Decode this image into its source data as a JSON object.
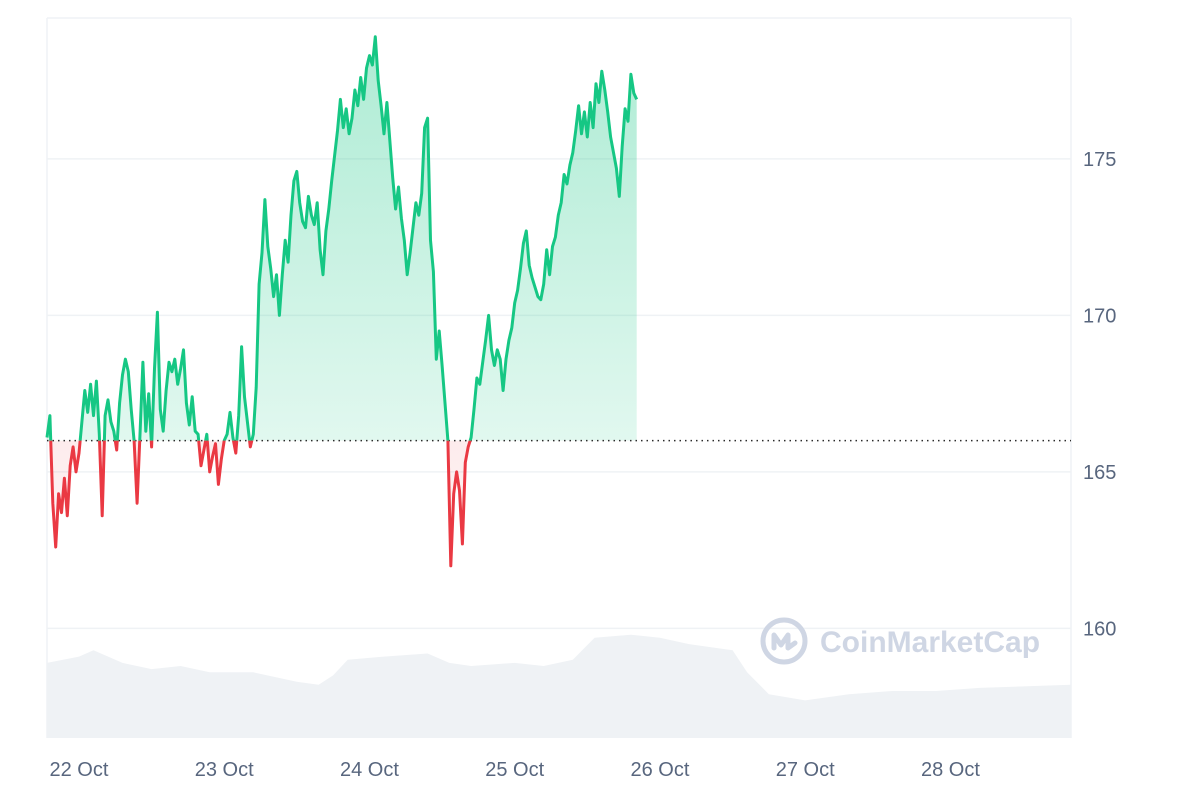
{
  "chart_data": {
    "type": "area",
    "baseline": 166,
    "ylim": [
      156.5,
      179.5
    ],
    "y_ticks": [
      "160",
      "165",
      "170",
      "175"
    ],
    "y_tick_values": [
      160,
      165,
      170,
      175
    ],
    "x_ticks": [
      "22 Oct",
      "23 Oct",
      "24 Oct",
      "25 Oct",
      "26 Oct",
      "27 Oct",
      "28 Oct"
    ],
    "x_tick_values": [
      0,
      1,
      2,
      3,
      4,
      5,
      6
    ],
    "xlim": [
      -0.22,
      6.83
    ],
    "grid": true,
    "colors": {
      "up": "#16c784",
      "down": "#ea3943",
      "volume": "#eff2f5",
      "grid": "#eff2f5",
      "baseline": "#2b2b2b"
    },
    "price": [
      [
        -0.22,
        166.1
      ],
      [
        -0.2,
        166.8
      ],
      [
        -0.18,
        164.0
      ],
      [
        -0.16,
        162.6
      ],
      [
        -0.14,
        164.3
      ],
      [
        -0.12,
        163.7
      ],
      [
        -0.1,
        164.8
      ],
      [
        -0.08,
        163.6
      ],
      [
        -0.06,
        165.2
      ],
      [
        -0.04,
        165.8
      ],
      [
        -0.02,
        165.0
      ],
      [
        0.0,
        165.6
      ],
      [
        0.02,
        166.6
      ],
      [
        0.04,
        167.6
      ],
      [
        0.06,
        166.9
      ],
      [
        0.08,
        167.8
      ],
      [
        0.1,
        166.8
      ],
      [
        0.12,
        167.9
      ],
      [
        0.14,
        166.2
      ],
      [
        0.16,
        163.6
      ],
      [
        0.18,
        166.8
      ],
      [
        0.2,
        167.3
      ],
      [
        0.22,
        166.6
      ],
      [
        0.24,
        166.3
      ],
      [
        0.26,
        165.7
      ],
      [
        0.28,
        167.2
      ],
      [
        0.3,
        168.1
      ],
      [
        0.32,
        168.6
      ],
      [
        0.34,
        168.2
      ],
      [
        0.36,
        167.0
      ],
      [
        0.38,
        166.0
      ],
      [
        0.4,
        164.0
      ],
      [
        0.42,
        166.2
      ],
      [
        0.44,
        168.5
      ],
      [
        0.46,
        166.3
      ],
      [
        0.48,
        167.5
      ],
      [
        0.5,
        165.8
      ],
      [
        0.52,
        168.3
      ],
      [
        0.54,
        170.1
      ],
      [
        0.56,
        167.0
      ],
      [
        0.58,
        166.3
      ],
      [
        0.6,
        167.6
      ],
      [
        0.62,
        168.5
      ],
      [
        0.64,
        168.2
      ],
      [
        0.66,
        168.6
      ],
      [
        0.68,
        167.8
      ],
      [
        0.7,
        168.3
      ],
      [
        0.72,
        168.9
      ],
      [
        0.74,
        167.2
      ],
      [
        0.76,
        166.5
      ],
      [
        0.78,
        167.4
      ],
      [
        0.8,
        166.3
      ],
      [
        0.82,
        166.2
      ],
      [
        0.84,
        165.2
      ],
      [
        0.86,
        165.7
      ],
      [
        0.88,
        166.2
      ],
      [
        0.9,
        165.0
      ],
      [
        0.92,
        165.5
      ],
      [
        0.94,
        165.9
      ],
      [
        0.96,
        164.6
      ],
      [
        0.98,
        165.4
      ],
      [
        1.0,
        166.0
      ],
      [
        1.02,
        166.2
      ],
      [
        1.04,
        166.9
      ],
      [
        1.06,
        166.1
      ],
      [
        1.08,
        165.6
      ],
      [
        1.1,
        166.8
      ],
      [
        1.12,
        169.0
      ],
      [
        1.14,
        167.4
      ],
      [
        1.16,
        166.6
      ],
      [
        1.18,
        165.8
      ],
      [
        1.2,
        166.2
      ],
      [
        1.22,
        167.7
      ],
      [
        1.24,
        171.0
      ],
      [
        1.26,
        172.0
      ],
      [
        1.28,
        173.7
      ],
      [
        1.3,
        172.2
      ],
      [
        1.32,
        171.5
      ],
      [
        1.34,
        170.6
      ],
      [
        1.36,
        171.3
      ],
      [
        1.38,
        170.0
      ],
      [
        1.4,
        171.3
      ],
      [
        1.42,
        172.4
      ],
      [
        1.44,
        171.7
      ],
      [
        1.46,
        173.2
      ],
      [
        1.48,
        174.3
      ],
      [
        1.5,
        174.6
      ],
      [
        1.52,
        173.6
      ],
      [
        1.54,
        173.0
      ],
      [
        1.56,
        172.8
      ],
      [
        1.58,
        173.8
      ],
      [
        1.6,
        173.2
      ],
      [
        1.62,
        172.9
      ],
      [
        1.64,
        173.6
      ],
      [
        1.66,
        172.1
      ],
      [
        1.68,
        171.3
      ],
      [
        1.7,
        172.7
      ],
      [
        1.72,
        173.4
      ],
      [
        1.74,
        174.3
      ],
      [
        1.76,
        175.1
      ],
      [
        1.78,
        175.9
      ],
      [
        1.8,
        176.9
      ],
      [
        1.82,
        176.0
      ],
      [
        1.84,
        176.6
      ],
      [
        1.86,
        175.8
      ],
      [
        1.88,
        176.3
      ],
      [
        1.9,
        177.2
      ],
      [
        1.92,
        176.7
      ],
      [
        1.94,
        177.6
      ],
      [
        1.96,
        176.9
      ],
      [
        1.98,
        177.9
      ],
      [
        2.0,
        178.3
      ],
      [
        2.02,
        178.0
      ],
      [
        2.04,
        178.9
      ],
      [
        2.06,
        177.5
      ],
      [
        2.08,
        176.7
      ],
      [
        2.1,
        175.8
      ],
      [
        2.12,
        176.8
      ],
      [
        2.14,
        175.6
      ],
      [
        2.16,
        174.4
      ],
      [
        2.18,
        173.4
      ],
      [
        2.2,
        174.1
      ],
      [
        2.22,
        173.1
      ],
      [
        2.24,
        172.4
      ],
      [
        2.26,
        171.3
      ],
      [
        2.28,
        172.0
      ],
      [
        2.3,
        172.8
      ],
      [
        2.32,
        173.6
      ],
      [
        2.34,
        173.2
      ],
      [
        2.36,
        173.9
      ],
      [
        2.38,
        176.0
      ],
      [
        2.4,
        176.3
      ],
      [
        2.42,
        172.4
      ],
      [
        2.44,
        171.4
      ],
      [
        2.46,
        168.6
      ],
      [
        2.48,
        169.5
      ],
      [
        2.5,
        168.4
      ],
      [
        2.52,
        167.2
      ],
      [
        2.54,
        166.0
      ],
      [
        2.56,
        162.0
      ],
      [
        2.58,
        164.3
      ],
      [
        2.6,
        165.0
      ],
      [
        2.62,
        164.4
      ],
      [
        2.64,
        162.7
      ],
      [
        2.66,
        165.3
      ],
      [
        2.68,
        165.8
      ],
      [
        2.7,
        166.1
      ],
      [
        2.72,
        167.0
      ],
      [
        2.74,
        168.0
      ],
      [
        2.76,
        167.8
      ],
      [
        2.78,
        168.5
      ],
      [
        2.8,
        169.2
      ],
      [
        2.82,
        170.0
      ],
      [
        2.84,
        168.9
      ],
      [
        2.86,
        168.4
      ],
      [
        2.88,
        168.9
      ],
      [
        2.9,
        168.6
      ],
      [
        2.92,
        167.6
      ],
      [
        2.94,
        168.6
      ],
      [
        2.96,
        169.2
      ],
      [
        2.98,
        169.6
      ],
      [
        3.0,
        170.4
      ],
      [
        3.02,
        170.8
      ],
      [
        3.04,
        171.5
      ],
      [
        3.06,
        172.3
      ],
      [
        3.08,
        172.7
      ],
      [
        3.1,
        171.6
      ],
      [
        3.12,
        171.2
      ],
      [
        3.14,
        170.9
      ],
      [
        3.16,
        170.6
      ],
      [
        3.18,
        170.5
      ],
      [
        3.2,
        171.0
      ],
      [
        3.22,
        172.1
      ],
      [
        3.24,
        171.3
      ],
      [
        3.26,
        172.2
      ],
      [
        3.28,
        172.5
      ],
      [
        3.3,
        173.2
      ],
      [
        3.32,
        173.6
      ],
      [
        3.34,
        174.5
      ],
      [
        3.36,
        174.2
      ],
      [
        3.38,
        174.8
      ],
      [
        3.4,
        175.2
      ],
      [
        3.42,
        175.9
      ],
      [
        3.44,
        176.7
      ],
      [
        3.46,
        175.8
      ],
      [
        3.48,
        176.5
      ],
      [
        3.5,
        175.7
      ],
      [
        3.52,
        176.8
      ],
      [
        3.54,
        176.0
      ],
      [
        3.56,
        177.4
      ],
      [
        3.58,
        176.8
      ],
      [
        3.6,
        177.8
      ],
      [
        3.62,
        177.2
      ],
      [
        3.64,
        176.5
      ],
      [
        3.66,
        175.7
      ],
      [
        3.68,
        175.2
      ],
      [
        3.7,
        174.7
      ],
      [
        3.72,
        173.8
      ],
      [
        3.74,
        175.4
      ],
      [
        3.76,
        176.6
      ],
      [
        3.78,
        176.2
      ],
      [
        3.8,
        177.7
      ],
      [
        3.82,
        177.1
      ],
      [
        3.84,
        176.9
      ]
    ],
    "volume": [
      [
        -0.22,
        158.9
      ],
      [
        0.0,
        159.1
      ],
      [
        0.1,
        159.3
      ],
      [
        0.3,
        158.9
      ],
      [
        0.5,
        158.7
      ],
      [
        0.7,
        158.8
      ],
      [
        0.9,
        158.6
      ],
      [
        1.2,
        158.6
      ],
      [
        1.5,
        158.3
      ],
      [
        1.65,
        158.2
      ],
      [
        1.75,
        158.5
      ],
      [
        1.85,
        159.0
      ],
      [
        2.1,
        159.1
      ],
      [
        2.4,
        159.2
      ],
      [
        2.55,
        158.9
      ],
      [
        2.7,
        158.8
      ],
      [
        3.0,
        158.9
      ],
      [
        3.2,
        158.8
      ],
      [
        3.4,
        159.0
      ],
      [
        3.55,
        159.7
      ],
      [
        3.8,
        159.8
      ],
      [
        4.0,
        159.7
      ],
      [
        4.2,
        159.5
      ],
      [
        4.5,
        159.3
      ],
      [
        4.6,
        158.6
      ],
      [
        4.75,
        157.9
      ],
      [
        5.0,
        157.7
      ],
      [
        5.3,
        157.9
      ],
      [
        5.6,
        158.0
      ],
      [
        5.9,
        158.0
      ],
      [
        6.2,
        158.1
      ],
      [
        6.83,
        158.2
      ]
    ]
  },
  "watermark": {
    "text": "CoinMarketCap",
    "icon": "coinmarketcap-logo-icon"
  }
}
